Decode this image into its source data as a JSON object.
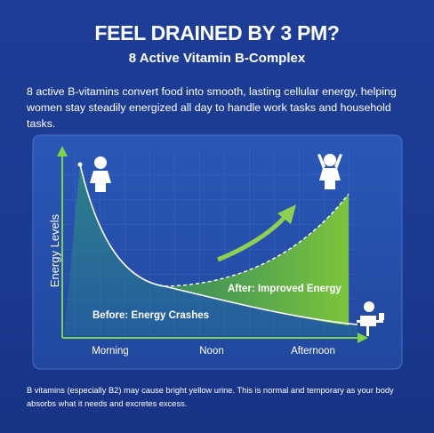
{
  "header": {
    "title": "FEEL DRAINED BY 3 PM?",
    "subtitle": "8 Active Vitamin B-Complex"
  },
  "intro": "8 active B-vitamins convert food into smooth, lasting cellular energy, helping women stay steadily energized all day to handle work tasks and household tasks.",
  "diagram": {
    "y_label": "Energy Levels",
    "x_labels": [
      "Morning",
      "Noon",
      "Afternoon"
    ],
    "before_label": "Before: Energy Crashes",
    "after_label": "After: Improved Energy"
  },
  "footnote": "B vitamins (especially B2) may cause bright yellow urine. This is normal and temporary as your body absorbs what it needs and excretes excess."
}
